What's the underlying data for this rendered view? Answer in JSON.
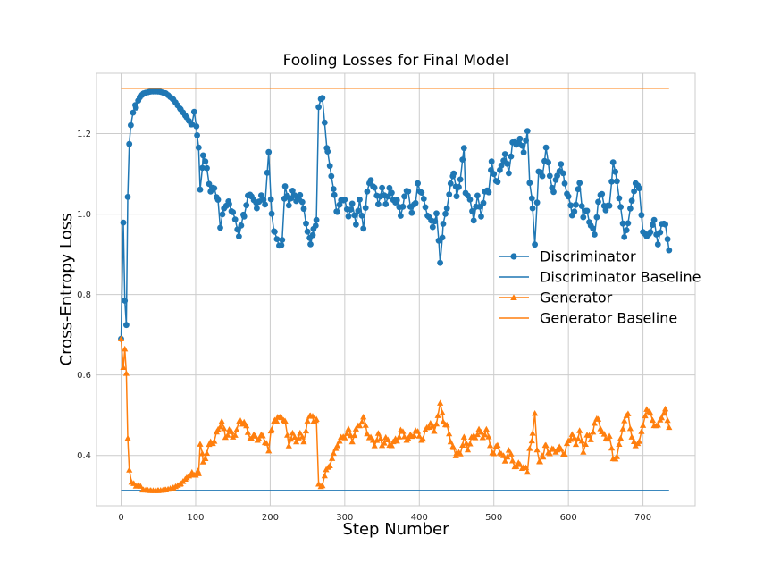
{
  "chart_data": {
    "type": "line",
    "title": "Fooling Losses for Final Model",
    "xlabel": "Step Number",
    "ylabel": "Cross-Entropy Loss",
    "xlim": [
      -33,
      770
    ],
    "ylim": [
      0.275,
      1.35
    ],
    "xticks": [
      0,
      100,
      200,
      300,
      400,
      500,
      600,
      700
    ],
    "yticks": [
      0.4,
      0.6,
      0.8,
      1.0,
      1.2
    ],
    "grid": true,
    "legend_position": "center-right",
    "series": [
      {
        "name": "Discriminator",
        "color": "#1f77b4",
        "marker": "circle",
        "keypoints": [
          [
            0,
            0.69
          ],
          [
            3,
            0.98
          ],
          [
            5,
            0.79
          ],
          [
            7,
            0.72
          ],
          [
            9,
            1.04
          ],
          [
            11,
            1.18
          ],
          [
            13,
            1.22
          ],
          [
            16,
            1.25
          ],
          [
            20,
            1.27
          ],
          [
            25,
            1.29
          ],
          [
            30,
            1.3
          ],
          [
            40,
            1.305
          ],
          [
            50,
            1.305
          ],
          [
            60,
            1.3
          ],
          [
            70,
            1.285
          ],
          [
            80,
            1.26
          ],
          [
            88,
            1.24
          ],
          [
            95,
            1.22
          ],
          [
            98,
            1.25
          ],
          [
            102,
            1.2
          ],
          [
            104,
            1.16
          ],
          [
            106,
            1.06
          ],
          [
            110,
            1.14
          ],
          [
            115,
            1.12
          ],
          [
            120,
            1.05
          ],
          [
            125,
            1.07
          ],
          [
            130,
            1.03
          ],
          [
            133,
            0.96
          ],
          [
            138,
            1.02
          ],
          [
            145,
            1.03
          ],
          [
            150,
            1.0
          ],
          [
            158,
            0.95
          ],
          [
            165,
            1.0
          ],
          [
            170,
            1.04
          ],
          [
            175,
            1.05
          ],
          [
            182,
            1.02
          ],
          [
            188,
            1.05
          ],
          [
            193,
            1.02
          ],
          [
            196,
            1.1
          ],
          [
            198,
            1.16
          ],
          [
            202,
            1.0
          ],
          [
            206,
            0.95
          ],
          [
            212,
            0.92
          ],
          [
            216,
            0.93
          ],
          [
            220,
            1.07
          ],
          [
            225,
            1.02
          ],
          [
            230,
            1.06
          ],
          [
            235,
            1.03
          ],
          [
            240,
            1.05
          ],
          [
            245,
            1.01
          ],
          [
            250,
            0.96
          ],
          [
            254,
            0.93
          ],
          [
            258,
            0.96
          ],
          [
            262,
            0.98
          ],
          [
            265,
            1.26
          ],
          [
            268,
            1.28
          ],
          [
            270,
            1.29
          ],
          [
            273,
            1.23
          ],
          [
            277,
            1.15
          ],
          [
            282,
            1.1
          ],
          [
            286,
            1.05
          ],
          [
            290,
            1.0
          ],
          [
            295,
            1.04
          ],
          [
            300,
            1.03
          ],
          [
            305,
            1.0
          ],
          [
            310,
            1.02
          ],
          [
            315,
            0.98
          ],
          [
            320,
            1.03
          ],
          [
            325,
            0.97
          ],
          [
            330,
            1.05
          ],
          [
            335,
            1.09
          ],
          [
            340,
            1.06
          ],
          [
            345,
            1.03
          ],
          [
            350,
            1.06
          ],
          [
            355,
            1.03
          ],
          [
            360,
            1.06
          ],
          [
            365,
            1.04
          ],
          [
            370,
            1.03
          ],
          [
            375,
            1.0
          ],
          [
            380,
            1.04
          ],
          [
            385,
            1.06
          ],
          [
            390,
            1.0
          ],
          [
            395,
            1.03
          ],
          [
            398,
            1.08
          ],
          [
            403,
            1.05
          ],
          [
            408,
            1.02
          ],
          [
            413,
            0.99
          ],
          [
            418,
            0.97
          ],
          [
            423,
            1.0
          ],
          [
            428,
            0.88
          ],
          [
            432,
            0.97
          ],
          [
            437,
            1.02
          ],
          [
            442,
            1.07
          ],
          [
            446,
            1.1
          ],
          [
            450,
            1.05
          ],
          [
            455,
            1.08
          ],
          [
            460,
            1.17
          ],
          [
            462,
            1.05
          ],
          [
            468,
            1.03
          ],
          [
            473,
            0.99
          ],
          [
            478,
            1.04
          ],
          [
            483,
            1.0
          ],
          [
            488,
            1.05
          ],
          [
            493,
            1.06
          ],
          [
            497,
            1.13
          ],
          [
            500,
            1.1
          ],
          [
            505,
            1.08
          ],
          [
            510,
            1.12
          ],
          [
            515,
            1.15
          ],
          [
            520,
            1.1
          ],
          [
            525,
            1.18
          ],
          [
            530,
            1.17
          ],
          [
            535,
            1.19
          ],
          [
            540,
            1.15
          ],
          [
            545,
            1.21
          ],
          [
            548,
            1.08
          ],
          [
            552,
            1.02
          ],
          [
            555,
            0.93
          ],
          [
            560,
            1.1
          ],
          [
            565,
            1.1
          ],
          [
            570,
            1.16
          ],
          [
            575,
            1.1
          ],
          [
            580,
            1.05
          ],
          [
            585,
            1.1
          ],
          [
            590,
            1.12
          ],
          [
            595,
            1.08
          ],
          [
            600,
            1.04
          ],
          [
            605,
            1.0
          ],
          [
            610,
            1.02
          ],
          [
            615,
            1.08
          ],
          [
            620,
            0.99
          ],
          [
            625,
            1.01
          ],
          [
            630,
            0.97
          ],
          [
            635,
            0.95
          ],
          [
            640,
            1.03
          ],
          [
            645,
            1.05
          ],
          [
            650,
            1.01
          ],
          [
            655,
            1.02
          ],
          [
            660,
            1.13
          ],
          [
            665,
            1.08
          ],
          [
            670,
            1.02
          ],
          [
            675,
            0.94
          ],
          [
            680,
            0.98
          ],
          [
            685,
            1.03
          ],
          [
            690,
            1.08
          ],
          [
            695,
            1.06
          ],
          [
            700,
            0.96
          ],
          [
            705,
            0.94
          ],
          [
            710,
            0.96
          ],
          [
            715,
            0.98
          ],
          [
            720,
            0.93
          ],
          [
            725,
            0.97
          ],
          [
            730,
            0.98
          ],
          [
            735,
            0.91
          ]
        ]
      },
      {
        "name": "Discriminator Baseline",
        "color": "#1f77b4",
        "marker": "none",
        "keypoints": [
          [
            0,
            0.313
          ],
          [
            735,
            0.313
          ]
        ]
      },
      {
        "name": "Generator",
        "color": "#ff7f0e",
        "marker": "triangle",
        "keypoints": [
          [
            0,
            0.69
          ],
          [
            3,
            0.62
          ],
          [
            5,
            0.67
          ],
          [
            7,
            0.6
          ],
          [
            9,
            0.44
          ],
          [
            11,
            0.37
          ],
          [
            14,
            0.34
          ],
          [
            20,
            0.325
          ],
          [
            30,
            0.315
          ],
          [
            40,
            0.313
          ],
          [
            50,
            0.313
          ],
          [
            60,
            0.315
          ],
          [
            70,
            0.32
          ],
          [
            80,
            0.33
          ],
          [
            88,
            0.345
          ],
          [
            95,
            0.355
          ],
          [
            100,
            0.355
          ],
          [
            104,
            0.36
          ],
          [
            106,
            0.43
          ],
          [
            110,
            0.39
          ],
          [
            115,
            0.4
          ],
          [
            120,
            0.44
          ],
          [
            125,
            0.43
          ],
          [
            130,
            0.47
          ],
          [
            135,
            0.48
          ],
          [
            140,
            0.45
          ],
          [
            145,
            0.46
          ],
          [
            150,
            0.45
          ],
          [
            155,
            0.46
          ],
          [
            160,
            0.49
          ],
          [
            165,
            0.48
          ],
          [
            170,
            0.46
          ],
          [
            175,
            0.44
          ],
          [
            180,
            0.45
          ],
          [
            185,
            0.44
          ],
          [
            190,
            0.45
          ],
          [
            195,
            0.43
          ],
          [
            198,
            0.41
          ],
          [
            202,
            0.47
          ],
          [
            206,
            0.49
          ],
          [
            210,
            0.49
          ],
          [
            215,
            0.5
          ],
          [
            220,
            0.48
          ],
          [
            225,
            0.43
          ],
          [
            230,
            0.45
          ],
          [
            235,
            0.44
          ],
          [
            240,
            0.45
          ],
          [
            245,
            0.44
          ],
          [
            250,
            0.48
          ],
          [
            254,
            0.5
          ],
          [
            258,
            0.49
          ],
          [
            262,
            0.49
          ],
          [
            265,
            0.33
          ],
          [
            268,
            0.325
          ],
          [
            270,
            0.33
          ],
          [
            275,
            0.36
          ],
          [
            280,
            0.38
          ],
          [
            285,
            0.4
          ],
          [
            290,
            0.43
          ],
          [
            295,
            0.44
          ],
          [
            300,
            0.45
          ],
          [
            305,
            0.46
          ],
          [
            310,
            0.44
          ],
          [
            315,
            0.46
          ],
          [
            320,
            0.48
          ],
          [
            325,
            0.49
          ],
          [
            330,
            0.46
          ],
          [
            335,
            0.44
          ],
          [
            340,
            0.43
          ],
          [
            345,
            0.45
          ],
          [
            350,
            0.43
          ],
          [
            355,
            0.44
          ],
          [
            360,
            0.43
          ],
          [
            365,
            0.43
          ],
          [
            370,
            0.44
          ],
          [
            375,
            0.46
          ],
          [
            380,
            0.45
          ],
          [
            385,
            0.44
          ],
          [
            390,
            0.45
          ],
          [
            395,
            0.46
          ],
          [
            400,
            0.45
          ],
          [
            405,
            0.44
          ],
          [
            410,
            0.47
          ],
          [
            415,
            0.48
          ],
          [
            420,
            0.46
          ],
          [
            425,
            0.5
          ],
          [
            428,
            0.53
          ],
          [
            432,
            0.49
          ],
          [
            437,
            0.47
          ],
          [
            442,
            0.44
          ],
          [
            446,
            0.42
          ],
          [
            450,
            0.4
          ],
          [
            455,
            0.41
          ],
          [
            460,
            0.44
          ],
          [
            465,
            0.42
          ],
          [
            470,
            0.44
          ],
          [
            475,
            0.45
          ],
          [
            480,
            0.46
          ],
          [
            485,
            0.45
          ],
          [
            490,
            0.46
          ],
          [
            495,
            0.43
          ],
          [
            500,
            0.4
          ],
          [
            505,
            0.43
          ],
          [
            510,
            0.4
          ],
          [
            515,
            0.39
          ],
          [
            520,
            0.41
          ],
          [
            525,
            0.39
          ],
          [
            530,
            0.37
          ],
          [
            535,
            0.38
          ],
          [
            540,
            0.37
          ],
          [
            545,
            0.36
          ],
          [
            548,
            0.42
          ],
          [
            552,
            0.45
          ],
          [
            555,
            0.5
          ],
          [
            558,
            0.41
          ],
          [
            562,
            0.38
          ],
          [
            566,
            0.4
          ],
          [
            570,
            0.43
          ],
          [
            575,
            0.4
          ],
          [
            580,
            0.42
          ],
          [
            585,
            0.41
          ],
          [
            590,
            0.42
          ],
          [
            595,
            0.4
          ],
          [
            600,
            0.44
          ],
          [
            605,
            0.45
          ],
          [
            610,
            0.43
          ],
          [
            615,
            0.46
          ],
          [
            620,
            0.41
          ],
          [
            625,
            0.45
          ],
          [
            630,
            0.44
          ],
          [
            635,
            0.48
          ],
          [
            640,
            0.49
          ],
          [
            645,
            0.46
          ],
          [
            650,
            0.44
          ],
          [
            655,
            0.45
          ],
          [
            660,
            0.39
          ],
          [
            665,
            0.4
          ],
          [
            670,
            0.44
          ],
          [
            675,
            0.49
          ],
          [
            680,
            0.5
          ],
          [
            685,
            0.45
          ],
          [
            690,
            0.42
          ],
          [
            695,
            0.44
          ],
          [
            700,
            0.47
          ],
          [
            705,
            0.52
          ],
          [
            710,
            0.5
          ],
          [
            715,
            0.48
          ],
          [
            720,
            0.47
          ],
          [
            725,
            0.5
          ],
          [
            730,
            0.51
          ],
          [
            735,
            0.47
          ]
        ]
      },
      {
        "name": "Generator Baseline",
        "color": "#ff7f0e",
        "marker": "none",
        "keypoints": [
          [
            0,
            1.313
          ],
          [
            735,
            1.313
          ]
        ]
      }
    ]
  }
}
